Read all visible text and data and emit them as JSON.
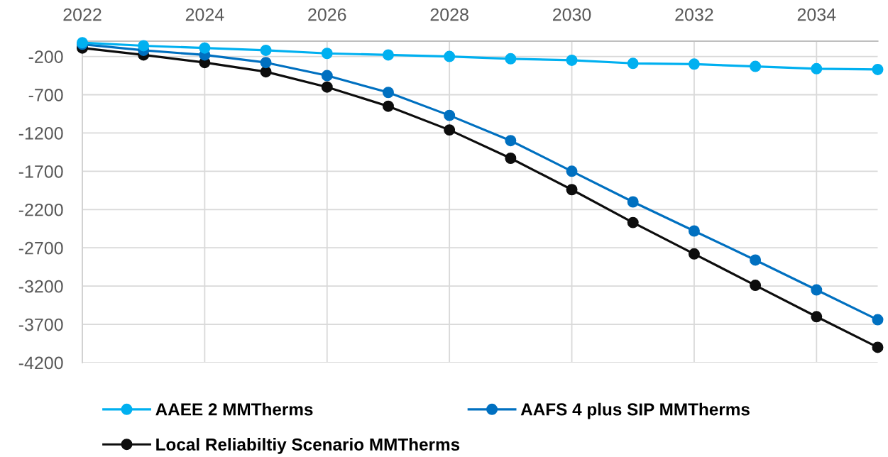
{
  "chart_data": {
    "type": "line",
    "x": [
      2022,
      2023,
      2024,
      2025,
      2026,
      2027,
      2028,
      2029,
      2030,
      2031,
      2032,
      2033,
      2034,
      2035
    ],
    "series": [
      {
        "name": "AAEE 2 MMTherms",
        "color": "#00b0f0",
        "values": [
          -20,
          -60,
          -90,
          -120,
          -160,
          -180,
          -200,
          -230,
          -250,
          -290,
          -300,
          -330,
          -360,
          -370
        ]
      },
      {
        "name": "AAFS 4 plus SIP MMTherms",
        "color": "#0070c0",
        "values": [
          -40,
          -120,
          -180,
          -280,
          -450,
          -670,
          -970,
          -1300,
          -1700,
          -2100,
          -2480,
          -2860,
          -3250,
          -3640
        ]
      },
      {
        "name": "Local Reliabiltiy Scenario MMTherms",
        "color": "#0d0d0d",
        "values": [
          -90,
          -180,
          -280,
          -400,
          -600,
          -850,
          -1160,
          -1530,
          -1940,
          -2370,
          -2780,
          -3190,
          -3600,
          -4000
        ]
      }
    ],
    "xlim": [
      2022,
      2035
    ],
    "xticks": [
      2022,
      2024,
      2026,
      2028,
      2030,
      2032,
      2034
    ],
    "ylim": [
      -4200,
      0
    ],
    "yticks": [
      -4200,
      -3700,
      -3200,
      -2700,
      -2200,
      -1700,
      -1200,
      -700,
      -200
    ],
    "grid": true,
    "legend": "bottom",
    "marker": "circle",
    "line_style": "solid"
  }
}
